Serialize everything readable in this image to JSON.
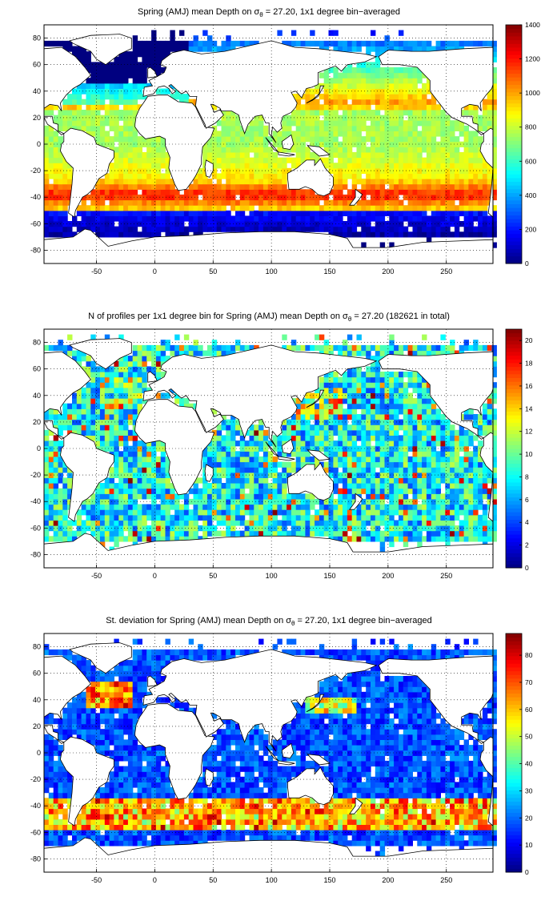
{
  "figure": {
    "panels": [
      {
        "id": "mean-depth",
        "title_before": "Spring (AMJ) mean Depth on ",
        "title_sigma": "σ",
        "title_sub": "θ",
        "title_after": " = 27.20, 1x1 degree bin−averaged",
        "colorbar": {
          "min": 0,
          "max": 1400,
          "ticks": [
            "0",
            "200",
            "400",
            "600",
            "800",
            "1000",
            "1200",
            "1400"
          ]
        },
        "field": "depth"
      },
      {
        "id": "profile-count",
        "title_before": "N of profiles per 1x1 degree bin for Spring (AMJ) mean Depth on ",
        "title_sigma": "σ",
        "title_sub": "θ",
        "title_after": " = 27.20 (182621 in total)",
        "colorbar": {
          "min": 0,
          "max": 21,
          "ticks": [
            "0",
            "2",
            "4",
            "6",
            "8",
            "10",
            "12",
            "14",
            "16",
            "18",
            "20"
          ]
        },
        "field": "count"
      },
      {
        "id": "std-deviation",
        "title_before": "St. deviation for Spring (AMJ) mean Depth on ",
        "title_sigma": "σ",
        "title_sub": "θ",
        "title_after": " = 27.20, 1x1 degree bin−averaged",
        "colorbar": {
          "min": 0,
          "max": 88,
          "ticks": [
            "0",
            "10",
            "20",
            "30",
            "40",
            "50",
            "60",
            "70",
            "80"
          ]
        },
        "field": "std"
      }
    ],
    "x_axis": {
      "range": [
        -95,
        290
      ],
      "ticks": [
        "-50",
        "0",
        "50",
        "100",
        "150",
        "200",
        "250"
      ]
    },
    "y_axis": {
      "range": [
        -90,
        90
      ],
      "ticks": [
        "80",
        "60",
        "40",
        "20",
        "0",
        "-20",
        "-40",
        "-60",
        "-80"
      ]
    },
    "colormap": "jet",
    "grid": true,
    "land_color": "#ffffff",
    "coastline_color": "#000000"
  }
}
